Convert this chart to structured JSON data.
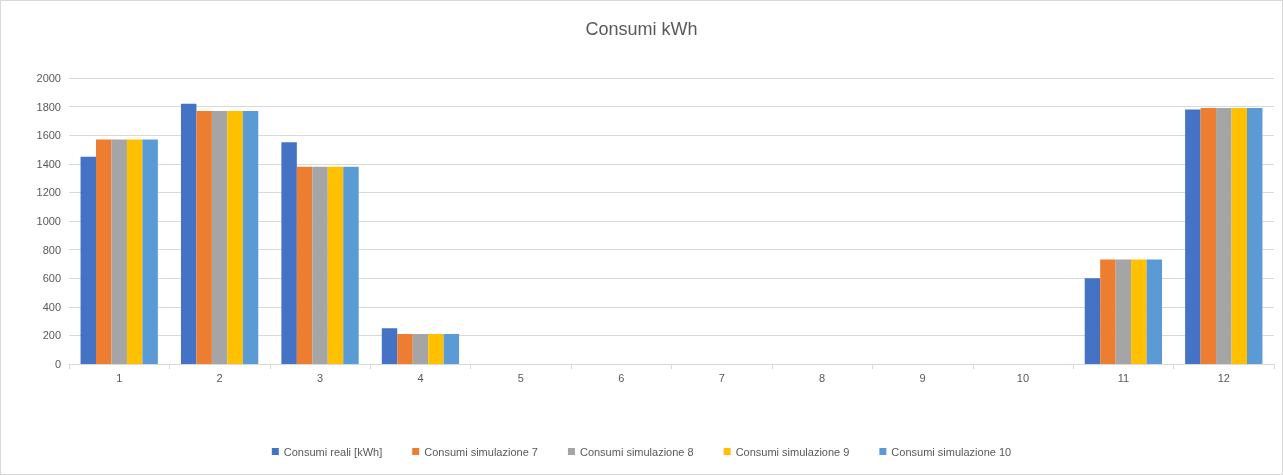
{
  "chart_data": {
    "type": "bar",
    "title": "Consumi kWh",
    "categories": [
      "1",
      "2",
      "3",
      "4",
      "5",
      "6",
      "7",
      "8",
      "9",
      "10",
      "11",
      "12"
    ],
    "series": [
      {
        "name": "Consumi reali [kWh]",
        "color": "#4472c4",
        "values": [
          1450,
          1820,
          1550,
          250,
          0,
          0,
          0,
          0,
          0,
          0,
          600,
          1780
        ]
      },
      {
        "name": "Consumi simulazione 7",
        "color": "#ed7d31",
        "values": [
          1570,
          1770,
          1380,
          210,
          0,
          0,
          0,
          0,
          0,
          0,
          730,
          1790
        ]
      },
      {
        "name": "Consumi simulazione 8",
        "color": "#a5a5a5",
        "values": [
          1570,
          1770,
          1380,
          210,
          0,
          0,
          0,
          0,
          0,
          0,
          730,
          1790
        ]
      },
      {
        "name": "Consumi simulazione 9",
        "color": "#ffc000",
        "values": [
          1570,
          1770,
          1380,
          210,
          0,
          0,
          0,
          0,
          0,
          0,
          730,
          1790
        ]
      },
      {
        "name": "Consumi simulazione 10",
        "color": "#5b9bd5",
        "values": [
          1570,
          1770,
          1380,
          210,
          0,
          0,
          0,
          0,
          0,
          0,
          730,
          1790
        ]
      }
    ],
    "ylim": [
      0,
      2000
    ],
    "yticks": [
      0,
      200,
      400,
      600,
      800,
      1000,
      1200,
      1400,
      1600,
      1800,
      2000
    ],
    "grid": "y",
    "legend": "bottom"
  }
}
